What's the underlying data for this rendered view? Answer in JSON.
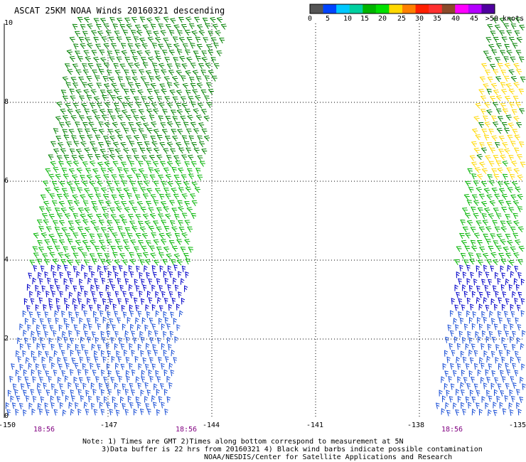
{
  "title": "ASCAT 25KM NOAA Winds 20160321 descending",
  "colorbar": {
    "labels": [
      "0",
      "5",
      "10",
      "15",
      "20",
      "25",
      "30",
      "35",
      "40",
      "45",
      ">50 knots"
    ],
    "colors": [
      "#555555",
      "#0044ff",
      "#00c8ff",
      "#00d0a0",
      "#00b400",
      "#00e000",
      "#ffd800",
      "#ff8000",
      "#ff2000",
      "#ff3030",
      "#8b4a2b",
      "#ff00ff",
      "#b400ff",
      "#5000a0"
    ]
  },
  "y_axis": {
    "ticks": [
      "10",
      "8",
      "6",
      "4",
      "2",
      "0"
    ],
    "values": [
      10,
      8,
      6,
      4,
      2,
      0
    ]
  },
  "x_axis": {
    "ticks": [
      "-150",
      "-147",
      "-144",
      "-141",
      "-138",
      "-135"
    ],
    "values": [
      -150,
      -147,
      -144,
      -141,
      -138,
      -135
    ]
  },
  "pass_times": [
    "18:56",
    "18:56",
    "18:56"
  ],
  "notes": [
    "Note: 1) Times are GMT 2)Times along bottom correspond to measurement at 5N",
    "3)Data buffer is 22 hrs from 20160321 4) Black wind barbs indicate possible contamination",
    "NOAA/NESDIS/Center for Satellite Applications and Research"
  ],
  "map": {
    "lat_range": [
      0,
      10
    ],
    "lon_range": [
      -150,
      -135
    ],
    "swaths": [
      {
        "name": "west-swath",
        "lon_bottom": [
          -150.0,
          -145.3
        ],
        "lon_top": [
          -147.9,
          -143.6
        ],
        "lat_range": [
          0,
          10.1
        ]
      },
      {
        "name": "east-swath",
        "lon_bottom": [
          -137.5,
          -135.0
        ],
        "lon_top": [
          -135.9,
          -135.0
        ],
        "lat_range": [
          0,
          10.1
        ]
      }
    ],
    "wind_bands": [
      {
        "lat_min": 0,
        "lat_max": 2.6,
        "speed_kt": "10-15",
        "color": "#1a4fd6"
      },
      {
        "lat_min": 2.6,
        "lat_max": 3.8,
        "speed_kt": "15",
        "color": "#0000c8"
      },
      {
        "lat_min": 3.8,
        "lat_max": 6.5,
        "speed_kt": "15-20",
        "color": "#00b400"
      },
      {
        "lat_min": 6.5,
        "lat_max": 10,
        "speed_kt": "20",
        "color": "#008000"
      },
      {
        "lat_min": 6.0,
        "lat_max": 9.0,
        "speed_kt": "20-25",
        "color": "#ffd800",
        "swath": "east-swath"
      }
    ]
  }
}
